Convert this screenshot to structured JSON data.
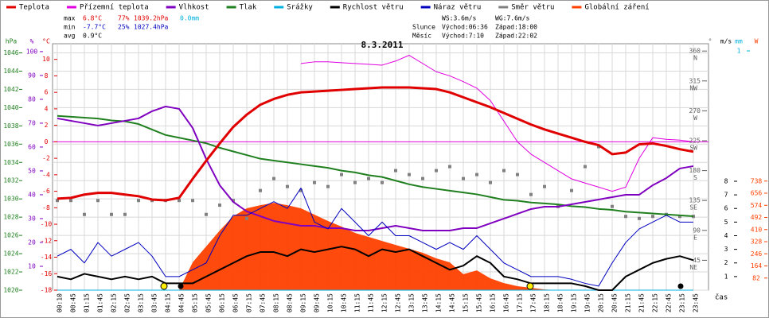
{
  "chart_data": {
    "type": "line",
    "title": "8.3.2011",
    "x_label": "čas",
    "stats": {
      "max": [
        "max",
        "6.8°C",
        "77%",
        "1039.2hPa",
        "0.0mm"
      ],
      "min": [
        "min",
        "-7.7°C",
        "25%",
        "1027.4hPa"
      ],
      "avg": [
        "avg",
        "0.9°C"
      ],
      "wind": [
        "WS:3.6m/s",
        "WG:7.6m/s"
      ],
      "sun": [
        "Slunce",
        "Východ:06:36",
        "Západ:18:00"
      ],
      "moon": [
        "Měsíc",
        "Východ:7:10",
        "Západ:22:02"
      ]
    },
    "categories": [
      "00:10",
      "00:45",
      "01:15",
      "01:45",
      "02:15",
      "02:45",
      "03:15",
      "03:45",
      "04:15",
      "04:45",
      "05:15",
      "05:45",
      "06:15",
      "06:45",
      "07:15",
      "07:45",
      "08:15",
      "08:45",
      "09:15",
      "09:45",
      "10:15",
      "10:45",
      "11:15",
      "11:45",
      "12:15",
      "12:45",
      "13:15",
      "13:45",
      "14:15",
      "14:45",
      "15:15",
      "15:45",
      "16:15",
      "16:45",
      "17:15",
      "17:45",
      "18:15",
      "18:45",
      "19:15",
      "19:45",
      "20:15",
      "20:45",
      "21:15",
      "21:45",
      "22:15",
      "22:45",
      "23:15",
      "23:45"
    ],
    "axes": {
      "hpa": {
        "label": "hPa",
        "color": "#208020",
        "lim": [
          1020,
          1047
        ],
        "ticks": [
          1020,
          1022,
          1024,
          1026,
          1028,
          1030,
          1032,
          1034,
          1036,
          1038,
          1040,
          1042,
          1044,
          1046
        ]
      },
      "pct": {
        "label": "%",
        "color": "#8000c0",
        "lim": [
          0,
          103.3
        ],
        "ticks": [
          10,
          20,
          30,
          40,
          50,
          60,
          70,
          80,
          90,
          100
        ]
      },
      "temp": {
        "label": "°C",
        "color": "#e00000",
        "lim": [
          -18,
          11.9
        ],
        "ticks": [
          -18,
          -16,
          -14,
          -12,
          -10,
          -8,
          -6,
          -4,
          -2,
          0,
          2,
          4,
          6,
          8,
          10
        ]
      },
      "deg": {
        "label": "°",
        "color": "#606060",
        "lim": [
          0,
          371
        ],
        "ticks": [
          45,
          90,
          135,
          180,
          225,
          270,
          315,
          360
        ],
        "names": [
          "NE",
          "E",
          "SE",
          "S",
          "SW",
          "W",
          "NW",
          "N"
        ]
      },
      "ms": {
        "label": "m/s",
        "color": "#000000",
        "lim": [
          0,
          18.1
        ],
        "ticks": [
          1,
          2,
          3,
          4,
          5,
          6,
          7,
          8
        ]
      },
      "mm": {
        "label": "mm",
        "color": "#00b0e0",
        "lim": [
          0,
          1.03
        ],
        "ticks": [
          1
        ]
      },
      "wm": {
        "label": "W",
        "color": "#ff4000",
        "lim": [
          0,
          1667
        ],
        "ticks": [
          82,
          164,
          246,
          328,
          410,
          492,
          574,
          656,
          738
        ]
      }
    },
    "series": [
      {
        "name": "Teplota",
        "color": "#e00000",
        "axis": "temp",
        "style": "line",
        "width": 3,
        "values": [
          -6.9,
          -6.8,
          -6.4,
          -6.2,
          -6.2,
          -6.4,
          -6.6,
          -7.0,
          -7.1,
          -6.8,
          -4.5,
          -2.3,
          -0.2,
          1.8,
          3.3,
          4.5,
          5.2,
          5.7,
          6.0,
          6.1,
          6.2,
          6.3,
          6.4,
          6.5,
          6.6,
          6.6,
          6.6,
          6.5,
          6.4,
          6.0,
          5.4,
          4.8,
          4.2,
          3.5,
          2.8,
          2.1,
          1.5,
          1.0,
          0.5,
          0.0,
          -0.4,
          -1.5,
          -1.3,
          -0.3,
          -0.2,
          -0.5,
          -0.9,
          -1.2
        ]
      },
      {
        "name": "Přízemní teplota",
        "color": "#e000e0",
        "axis": "temp",
        "style": "line",
        "width": 1,
        "values": [
          null,
          null,
          null,
          null,
          null,
          null,
          null,
          null,
          null,
          null,
          null,
          null,
          null,
          null,
          null,
          null,
          null,
          null,
          9.5,
          9.7,
          9.7,
          9.6,
          9.5,
          9.4,
          9.3,
          9.8,
          10.5,
          9.5,
          8.5,
          8.0,
          7.3,
          6.5,
          5.0,
          2.5,
          0.0,
          -1.5,
          -2.5,
          -3.5,
          -4.5,
          -5.0,
          -5.5,
          -6.0,
          -5.5,
          -2.0,
          0.5,
          0.3,
          0.2,
          0.0
        ]
      },
      {
        "name": "Vlhkost",
        "color": "#8000c0",
        "axis": "pct",
        "style": "line",
        "width": 2,
        "values": [
          72,
          71,
          70,
          69,
          70,
          71,
          72,
          75,
          77,
          76,
          68,
          55,
          44,
          37,
          33,
          31,
          29,
          28,
          27,
          27,
          26,
          26,
          25,
          25,
          26,
          27,
          26,
          25,
          25,
          25,
          26,
          26,
          28,
          30,
          32,
          34,
          35,
          35,
          36,
          37,
          38,
          39,
          40,
          40,
          44,
          47,
          51,
          52
        ]
      },
      {
        "name": "Tlak",
        "color": "#208020",
        "axis": "hpa",
        "style": "line",
        "width": 2,
        "values": [
          1039.1,
          1039.0,
          1038.9,
          1038.8,
          1038.6,
          1038.5,
          1038.2,
          1037.6,
          1037.0,
          1036.7,
          1036.4,
          1036.1,
          1035.6,
          1035.2,
          1034.8,
          1034.4,
          1034.2,
          1034.0,
          1033.8,
          1033.6,
          1033.4,
          1033.1,
          1032.9,
          1032.6,
          1032.4,
          1032.0,
          1031.6,
          1031.3,
          1031.1,
          1030.9,
          1030.7,
          1030.5,
          1030.2,
          1029.9,
          1029.8,
          1029.6,
          1029.5,
          1029.4,
          1029.2,
          1029.1,
          1028.9,
          1028.8,
          1028.6,
          1028.5,
          1028.4,
          1028.3,
          1028.2,
          1028.1
        ]
      },
      {
        "name": "Srážky",
        "color": "#00b0e0",
        "axis": "mm",
        "style": "line",
        "width": 1,
        "values": [
          0,
          0,
          0,
          0,
          0,
          0,
          0,
          0,
          0,
          0,
          0,
          0,
          0,
          0,
          0,
          0,
          0,
          0,
          0,
          0,
          0,
          0,
          0,
          0,
          0,
          0,
          0,
          0,
          0,
          0,
          0,
          0,
          0,
          0,
          0,
          0,
          0,
          0,
          0,
          0,
          0,
          0,
          0,
          0,
          0,
          0,
          0,
          0
        ]
      },
      {
        "name": "Rychlost větru",
        "color": "#000000",
        "axis": "ms",
        "style": "line",
        "width": 2,
        "values": [
          1,
          0.8,
          1.2,
          1,
          0.8,
          1,
          0.8,
          1,
          0.5,
          0.5,
          0.5,
          1,
          1.5,
          2,
          2.5,
          2.8,
          2.8,
          2.5,
          3,
          2.8,
          3,
          3.2,
          3,
          2.5,
          3,
          2.8,
          3,
          2.5,
          2,
          1.5,
          1.8,
          2.5,
          2,
          1,
          0.8,
          0.5,
          0.5,
          0.5,
          0.5,
          0.3,
          0,
          0,
          1,
          1.5,
          2,
          2.3,
          2.5,
          2.2
        ]
      },
      {
        "name": "Náraz větru",
        "color": "#0000c0",
        "axis": "ms",
        "style": "line",
        "width": 1,
        "values": [
          2.5,
          3,
          2,
          3.5,
          2.5,
          3,
          3.5,
          2.5,
          1,
          1,
          1.5,
          2,
          4,
          5.5,
          5.5,
          6,
          6.5,
          6,
          7.5,
          5,
          4.5,
          6,
          5,
          4,
          5,
          4,
          4,
          3.5,
          3,
          3.5,
          3,
          4,
          3,
          2,
          1.5,
          1,
          1,
          1,
          0.8,
          0.5,
          0.3,
          2,
          3.5,
          4.5,
          5,
          5.5,
          5,
          5
        ]
      },
      {
        "name": "Směr větru",
        "color": "#808080",
        "axis": "deg",
        "style": "points",
        "width": 1,
        "values": [
          135,
          135,
          114,
          135,
          114,
          114,
          135,
          135,
          135,
          135,
          135,
          114,
          128,
          135,
          108,
          150,
          168,
          156,
          150,
          162,
          156,
          174,
          162,
          168,
          162,
          180,
          174,
          168,
          180,
          186,
          168,
          174,
          162,
          180,
          174,
          144,
          156,
          126,
          150,
          186,
          216,
          126,
          111,
          108,
          111,
          114,
          111,
          111
        ]
      },
      {
        "name": "Globální záření",
        "color": "#ff4000",
        "axis": "wm",
        "style": "area",
        "width": 1,
        "values": [
          0,
          0,
          0,
          0,
          0,
          0,
          0,
          0,
          0,
          0,
          188,
          296,
          403,
          500,
          554,
          575,
          591,
          575,
          554,
          511,
          468,
          430,
          387,
          360,
          333,
          306,
          280,
          253,
          215,
          188,
          108,
          134,
          80,
          48,
          27,
          16,
          5,
          0,
          0,
          0,
          0,
          0,
          0,
          0,
          0,
          0,
          0,
          0
        ]
      }
    ]
  }
}
